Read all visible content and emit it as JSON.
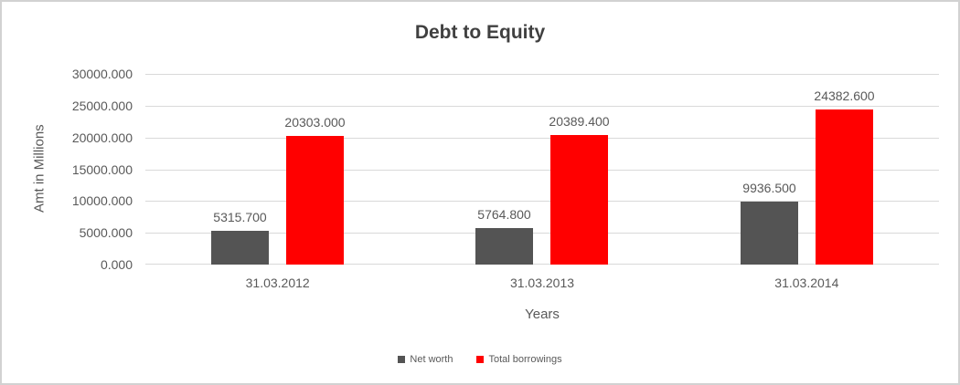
{
  "chart_data": {
    "type": "bar",
    "title": "Debt to Equity",
    "xlabel": "Years",
    "ylabel": "Amt in Millions",
    "categories": [
      "31.03.2012",
      "31.03.2013",
      "31.03.2014"
    ],
    "series": [
      {
        "name": "Net worth",
        "color": "#545454",
        "values": [
          5315.7,
          5764.8,
          9936.5
        ],
        "labels": [
          "5315.700",
          "5764.800",
          "9936.500"
        ]
      },
      {
        "name": "Total borrowings",
        "color": "#ff0000",
        "values": [
          20303.0,
          20389.4,
          24382.6
        ],
        "labels": [
          "20303.000",
          "20389.400",
          "24382.600"
        ]
      }
    ],
    "ylim": [
      0,
      30000
    ],
    "ytick_step": 5000,
    "ytick_labels_top_to_bottom": [
      "30000.000",
      "25000.000",
      "20000.000",
      "15000.000",
      "10000.000",
      "5000.000",
      "0.000"
    ],
    "grid": true,
    "legend_position": "bottom",
    "colors": {
      "gridline": "#d9d9d9",
      "axis_text": "#595959",
      "title_text": "#404040",
      "canvas_border": "#d2d2d2",
      "background": "#ffffff"
    }
  }
}
